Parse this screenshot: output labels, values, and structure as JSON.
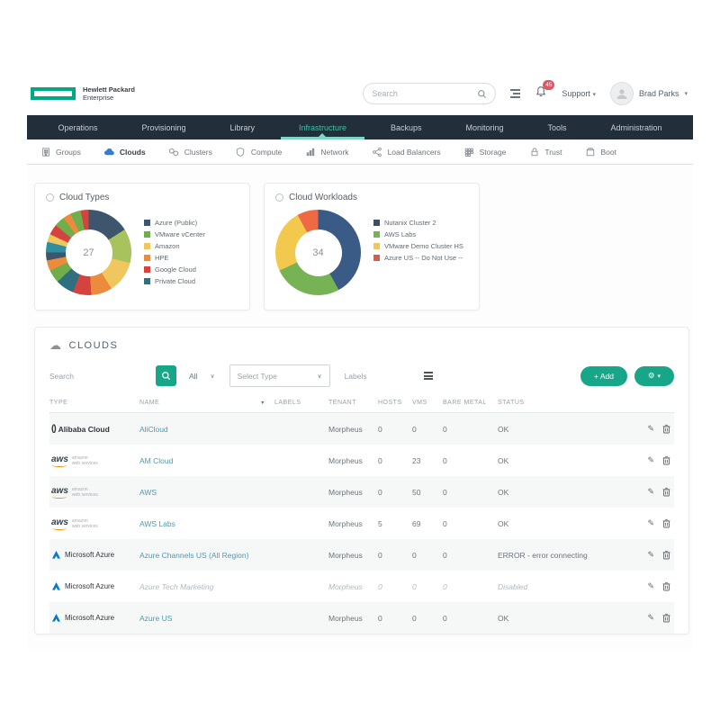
{
  "header": {
    "logo": {
      "line1": "Hewlett Packard",
      "line2": "Enterprise",
      "accent": "#01a982"
    },
    "search": {
      "placeholder": "Search"
    },
    "notifications": {
      "count": "45"
    },
    "support_label": "Support",
    "user": {
      "name": "Brad Parks"
    }
  },
  "nav": {
    "background": "#232e3b",
    "active_color": "#3fc0a6",
    "items": [
      {
        "label": "Operations",
        "active": false
      },
      {
        "label": "Provisioning",
        "active": false
      },
      {
        "label": "Library",
        "active": false
      },
      {
        "label": "Infrastructure",
        "active": true
      },
      {
        "label": "Backups",
        "active": false
      },
      {
        "label": "Monitoring",
        "active": false
      },
      {
        "label": "Tools",
        "active": false
      },
      {
        "label": "Administration",
        "active": false
      }
    ]
  },
  "subnav": {
    "items": [
      {
        "label": "Groups",
        "icon": "groups-icon",
        "active": false
      },
      {
        "label": "Clouds",
        "icon": "cloud-icon",
        "active": true,
        "icon_color": "#2f7fd1"
      },
      {
        "label": "Clusters",
        "icon": "clusters-icon",
        "active": false
      },
      {
        "label": "Compute",
        "icon": "compute-icon",
        "active": false
      },
      {
        "label": "Network",
        "icon": "network-icon",
        "active": false
      },
      {
        "label": "Load Balancers",
        "icon": "load-balancers-icon",
        "active": false
      },
      {
        "label": "Storage",
        "icon": "storage-icon",
        "active": false
      },
      {
        "label": "Trust",
        "icon": "trust-icon",
        "active": false
      },
      {
        "label": "Boot",
        "icon": "boot-icon",
        "active": false
      }
    ]
  },
  "chart_data": [
    {
      "type": "donut",
      "title": "Cloud Types",
      "center_total": "27",
      "legend": [
        {
          "label": "Azure (Public)",
          "color": "#3d566e"
        },
        {
          "label": "VMware vCenter",
          "color": "#6fae4b"
        },
        {
          "label": "Amazon",
          "color": "#f0c75e"
        },
        {
          "label": "HPE",
          "color": "#ed8b3d"
        },
        {
          "label": "Google Cloud",
          "color": "#d5433e"
        },
        {
          "label": "Private Cloud",
          "color": "#2e6f80"
        }
      ],
      "segments": [
        {
          "color": "#3d566e",
          "value": 16
        },
        {
          "color": "#a8c25e",
          "value": 13
        },
        {
          "color": "#f0c75e",
          "value": 12
        },
        {
          "color": "#ed8b3d",
          "value": 8
        },
        {
          "color": "#d5433e",
          "value": 7
        },
        {
          "color": "#2e6f80",
          "value": 7
        },
        {
          "color": "#6fae4b",
          "value": 5
        },
        {
          "color": "#ed8b3d",
          "value": 4
        },
        {
          "color": "#3d566e",
          "value": 3
        },
        {
          "color": "#2e8fa0",
          "value": 4
        },
        {
          "color": "#f0c75e",
          "value": 3
        },
        {
          "color": "#d5433e",
          "value": 4
        },
        {
          "color": "#6fae4b",
          "value": 4
        },
        {
          "color": "#ed8b3d",
          "value": 3
        },
        {
          "color": "#6fae4b",
          "value": 4
        },
        {
          "color": "#d5433e",
          "value": 3
        }
      ]
    },
    {
      "type": "donut",
      "title": "Cloud Workloads",
      "center_total": "34",
      "legend": [
        {
          "label": "Nutanix Cluster 2",
          "color": "#3d4f63"
        },
        {
          "label": "AWS Labs",
          "color": "#77b255"
        },
        {
          "label": "VMware Demo Cluster HS",
          "color": "#f0c75e"
        },
        {
          "label": "Azure US -- Do Not Use --",
          "color": "#e2574c"
        }
      ],
      "segments": [
        {
          "color": "#3a5b86",
          "value": 42
        },
        {
          "color": "#77b255",
          "value": 26
        },
        {
          "color": "#f2c94c",
          "value": 24
        },
        {
          "color": "#ed6a45",
          "value": 8
        }
      ]
    }
  ],
  "table": {
    "title": "CLOUDS",
    "toolbar": {
      "search_placeholder": "Search",
      "filter_all": "All",
      "type_placeholder": "Select Type",
      "labels_placeholder": "Labels",
      "add_label": "+ Add"
    },
    "columns": [
      "TYPE",
      "NAME",
      "LABELS",
      "TENANT",
      "HOSTS",
      "VMS",
      "BARE METAL",
      "STATUS"
    ],
    "rows": [
      {
        "logo": "alibaba",
        "type_label": "Alibaba Cloud",
        "name": "AliCloud",
        "labels": "",
        "tenant": "Morpheus",
        "hosts": "0",
        "vms": "0",
        "bare_metal": "0",
        "status": "OK",
        "disabled": false
      },
      {
        "logo": "aws",
        "type_label": "amazon web services",
        "name": "AM Cloud",
        "labels": "",
        "tenant": "Morpheus",
        "hosts": "0",
        "vms": "23",
        "bare_metal": "0",
        "status": "OK",
        "disabled": false
      },
      {
        "logo": "aws",
        "type_label": "amazon web services",
        "name": "AWS",
        "labels": "",
        "tenant": "Morpheus",
        "hosts": "0",
        "vms": "50",
        "bare_metal": "0",
        "status": "OK",
        "disabled": false
      },
      {
        "logo": "aws",
        "type_label": "amazon web services",
        "name": "AWS Labs",
        "labels": "",
        "tenant": "Morpheus",
        "hosts": "5",
        "vms": "69",
        "bare_metal": "0",
        "status": "OK",
        "disabled": false
      },
      {
        "logo": "azure",
        "type_label": "Microsoft Azure",
        "name": "Azure Channels US (All Region)",
        "labels": "",
        "tenant": "Morpheus",
        "hosts": "0",
        "vms": "0",
        "bare_metal": "0",
        "status": "ERROR - error connecting",
        "disabled": false
      },
      {
        "logo": "azure",
        "type_label": "Microsoft Azure",
        "name": "Azure Tech Marketing",
        "labels": "",
        "tenant": "Morpheus",
        "hosts": "0",
        "vms": "0",
        "bare_metal": "0",
        "status": "Disabled",
        "disabled": true
      },
      {
        "logo": "azure",
        "type_label": "Microsoft Azure",
        "name": "Azure US",
        "labels": "",
        "tenant": "Morpheus",
        "hosts": "0",
        "vms": "0",
        "bare_metal": "0",
        "status": "OK",
        "disabled": false
      }
    ]
  }
}
